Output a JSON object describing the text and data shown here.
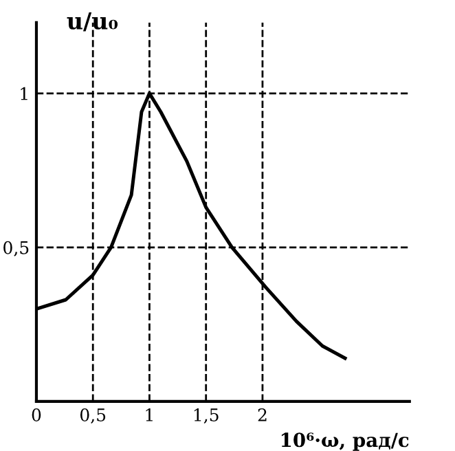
{
  "chart_data": {
    "type": "line",
    "xlabel": "10⁶·ω, рад/с",
    "ylabel": "u/u₀",
    "x": [
      0,
      0.26,
      0.5,
      0.66,
      0.84,
      0.93,
      1.0,
      1.1,
      1.33,
      1.5,
      1.73,
      2.03,
      2.3,
      2.53,
      2.73
    ],
    "series": [
      {
        "color": "#000000",
        "values": [
          0.3,
          0.33,
          0.41,
          0.5,
          0.67,
          0.94,
          1.0,
          0.94,
          0.78,
          0.63,
          0.5,
          0.37,
          0.26,
          0.18,
          0.14
        ]
      }
    ],
    "xlim": [
      0,
      3.3
    ],
    "ylim": [
      0,
      1.23
    ],
    "xticks": [
      {
        "value": 0,
        "label": "0"
      },
      {
        "value": 0.5,
        "label": "0,5"
      },
      1,
      {
        "value": 1.5,
        "label": "1,5"
      },
      2
    ],
    "yticks": [
      {
        "value": 0.5,
        "label": "0,5"
      },
      1
    ],
    "grid": true,
    "line_style": "solid",
    "marker": "none"
  }
}
